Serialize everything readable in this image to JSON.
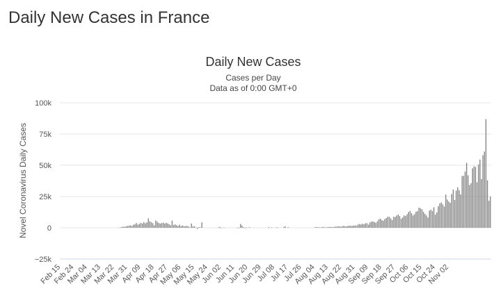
{
  "page": {
    "heading": "Daily New Cases in France"
  },
  "chart_data": {
    "type": "bar",
    "title": "Daily New Cases",
    "subtitle": "Cases per Day",
    "subtitle2": "Data as of 0:00 GMT+0",
    "ylabel": "Novel Coronavirus Daily Cases",
    "xlabel": "",
    "ylim": [
      -25000,
      100000
    ],
    "y_ticks": [
      -25000,
      0,
      25000,
      50000,
      75000,
      100000
    ],
    "y_tick_labels": [
      "−25k",
      "0",
      "25k",
      "50k",
      "75k",
      "100k"
    ],
    "x_tick_labels": [
      "Feb 15",
      "Feb 24",
      "Mar 04",
      "Mar 13",
      "Mar 22",
      "Mar 31",
      "Apr 09",
      "Apr 18",
      "Apr 27",
      "May 06",
      "May 15",
      "May 24",
      "Jun 02",
      "Jun 11",
      "Jun 20",
      "Jun 29",
      "Jul 08",
      "Jul 17",
      "Jul 26",
      "Aug 04",
      "Aug 13",
      "Aug 22",
      "Aug 31",
      "Sep 09",
      "Sep 18",
      "Sep 27",
      "Oct 06",
      "Oct 15",
      "Oct 24",
      "Nov 02"
    ],
    "start_label": "Feb 15",
    "grid": true,
    "legend": "none",
    "bar_color": "#7f7f7f",
    "series": [
      {
        "values": [
          0,
          0,
          0,
          0,
          0,
          0,
          0,
          0,
          0,
          0,
          0,
          0,
          0,
          0,
          0,
          0,
          0,
          0,
          0,
          0,
          0,
          0,
          0,
          0,
          0,
          0,
          0,
          0,
          0,
          0,
          0,
          0,
          0,
          0,
          0,
          0,
          0,
          0,
          0,
          0,
          200,
          600,
          900,
          800,
          1100,
          1400,
          1700,
          1900,
          1500,
          2400,
          2900,
          3800,
          2500,
          3100,
          3900,
          3400,
          4600,
          3600,
          4300,
          7500,
          5200,
          4500,
          3700,
          2000,
          5800,
          4800,
          3900,
          3300,
          3800,
          4100,
          3400,
          4000,
          3500,
          2800,
          2000,
          5700,
          2300,
          2700,
          2000,
          1400,
          2500,
          1300,
          1800,
          1400,
          1200,
          1500,
          1000,
          400,
          3400,
          1100,
          1200,
          200,
          -800,
          600,
          400,
          4300,
          0,
          0,
          0,
          0,
          0,
          0,
          0,
          0,
          0,
          0,
          200,
          600,
          -400,
          0,
          200,
          0,
          0,
          0,
          0,
          0,
          0,
          0,
          0,
          200,
          -300,
          3000,
          1800,
          500,
          -200,
          300,
          0,
          400,
          0,
          0,
          0,
          0,
          0,
          0,
          0,
          0,
          0,
          0,
          0,
          0,
          500,
          0,
          300,
          0,
          0,
          200,
          300,
          0,
          0,
          0,
          600,
          1200,
          0,
          500,
          0,
          0,
          0,
          0,
          0,
          0,
          0,
          0,
          0,
          0,
          0,
          0,
          0,
          0,
          0,
          0,
          0,
          400,
          600,
          400,
          400,
          300,
          500,
          700,
          300,
          400,
          600,
          700,
          600,
          500,
          800,
          900,
          1100,
          1200,
          900,
          1000,
          1500,
          1300,
          1100,
          1400,
          1700,
          1600,
          1400,
          1800,
          2000,
          1600,
          2600,
          3000,
          2600,
          3200,
          2800,
          3600,
          3700,
          2500,
          4200,
          4900,
          5100,
          4600,
          4000,
          5200,
          6800,
          7300,
          6200,
          5600,
          7000,
          7800,
          8900,
          8700,
          7500,
          6100,
          8800,
          8600,
          9800,
          10600,
          9400,
          7200,
          8300,
          9900,
          9400,
          10800,
          12600,
          13500,
          11600,
          9800,
          10900,
          12800,
          13300,
          16100,
          15500,
          14800,
          12700,
          11100,
          9900,
          8200,
          13600,
          14500,
          13400,
          16400,
          10500,
          12400,
          17200,
          19500,
          20300,
          18700,
          17000,
          26600,
          22600,
          21000,
          20000,
          27000,
          30600,
          22300,
          29700,
          32400,
          30100,
          26700,
          41400,
          41600,
          45000,
          52000,
          42000,
          34200,
          35700,
          47600,
          49200,
          48700,
          36400,
          50600,
          54600,
          39000,
          58100,
          61000,
          86900,
          38000,
          21600,
          25000
        ]
      }
    ]
  }
}
